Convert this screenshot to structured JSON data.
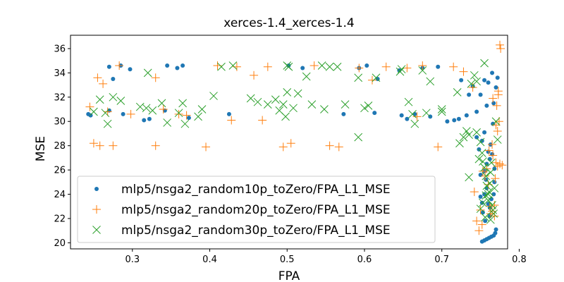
{
  "chart_data": {
    "type": "scatter",
    "title": "xerces-1.4_xerces-1.4",
    "xlabel": "FPA",
    "ylabel": "MSE",
    "xlim": [
      0.22,
      0.785
    ],
    "ylim": [
      19.5,
      37.1
    ],
    "xticks": [
      0.3,
      0.4,
      0.5,
      0.6,
      0.7,
      0.8
    ],
    "yticks": [
      20,
      22,
      24,
      26,
      28,
      30,
      32,
      34,
      36
    ],
    "grid": false,
    "legend_position": "lower-left",
    "series": [
      {
        "name": "mlp5/nsga2_random10p_toZero/FPA_L1_MSE",
        "marker": "dot",
        "color": "#1f77b4",
        "points": [
          [
            0.243,
            30.6
          ],
          [
            0.246,
            30.5
          ],
          [
            0.27,
            30.9
          ],
          [
            0.27,
            34.5
          ],
          [
            0.275,
            33.5
          ],
          [
            0.285,
            34.6
          ],
          [
            0.288,
            30.6
          ],
          [
            0.297,
            34.3
          ],
          [
            0.315,
            30.1
          ],
          [
            0.322,
            30.2
          ],
          [
            0.342,
            30.9
          ],
          [
            0.345,
            34.6
          ],
          [
            0.358,
            34.4
          ],
          [
            0.365,
            34.6
          ],
          [
            0.373,
            30.3
          ],
          [
            0.425,
            30.6
          ],
          [
            0.502,
            34.6
          ],
          [
            0.52,
            34.4
          ],
          [
            0.573,
            30.6
          ],
          [
            0.593,
            34.4
          ],
          [
            0.603,
            34.6
          ],
          [
            0.613,
            30.7
          ],
          [
            0.617,
            33.5
          ],
          [
            0.645,
            34.2
          ],
          [
            0.648,
            30.5
          ],
          [
            0.655,
            30.2
          ],
          [
            0.665,
            30.6
          ],
          [
            0.675,
            34.4
          ],
          [
            0.685,
            30.4
          ],
          [
            0.695,
            34.5
          ],
          [
            0.707,
            30.0
          ],
          [
            0.716,
            30.1
          ],
          [
            0.722,
            30.2
          ],
          [
            0.725,
            33.4
          ],
          [
            0.732,
            30.5
          ],
          [
            0.735,
            32.2
          ],
          [
            0.74,
            32.9
          ],
          [
            0.745,
            30.8
          ],
          [
            0.75,
            32.2
          ],
          [
            0.755,
            33.4
          ],
          [
            0.758,
            31.3
          ],
          [
            0.76,
            33.2
          ],
          [
            0.765,
            34.0
          ],
          [
            0.767,
            31.5
          ],
          [
            0.772,
            33.6
          ],
          [
            0.77,
            32.8
          ],
          [
            0.745,
            28.7
          ],
          [
            0.748,
            27.7
          ],
          [
            0.752,
            28.4
          ],
          [
            0.755,
            25.9
          ],
          [
            0.758,
            24.5
          ],
          [
            0.76,
            23.2
          ],
          [
            0.762,
            22.9
          ],
          [
            0.764,
            23.6
          ],
          [
            0.767,
            24.0
          ],
          [
            0.75,
            23.8
          ],
          [
            0.753,
            22.5
          ],
          [
            0.756,
            21.8
          ],
          [
            0.752,
            23.3
          ],
          [
            0.758,
            26.5
          ],
          [
            0.762,
            26.9
          ],
          [
            0.765,
            27.3
          ],
          [
            0.768,
            25.0
          ],
          [
            0.77,
            21.1
          ],
          [
            0.769,
            20.8
          ],
          [
            0.767,
            20.6
          ],
          [
            0.764,
            20.5
          ],
          [
            0.761,
            20.4
          ],
          [
            0.758,
            20.3
          ],
          [
            0.755,
            20.2
          ],
          [
            0.752,
            20.1
          ],
          [
            0.757,
            25.2
          ],
          [
            0.763,
            28.1
          ],
          [
            0.766,
            29.8
          ],
          [
            0.755,
            29.1
          ],
          [
            0.76,
            27.5
          ],
          [
            0.768,
            26.1
          ],
          [
            0.755,
            24.0
          ],
          [
            0.762,
            22.2
          ],
          [
            0.75,
            25.6
          ]
        ]
      },
      {
        "name": "mlp5/nsga2_random20p_toZero/FPA_L1_MSE",
        "marker": "plus",
        "color": "#ff7f0e",
        "points": [
          [
            0.245,
            31.2
          ],
          [
            0.25,
            28.2
          ],
          [
            0.255,
            33.6
          ],
          [
            0.258,
            28.0
          ],
          [
            0.262,
            33.1
          ],
          [
            0.268,
            30.8
          ],
          [
            0.275,
            28.0
          ],
          [
            0.283,
            34.6
          ],
          [
            0.298,
            30.6
          ],
          [
            0.33,
            33.6
          ],
          [
            0.33,
            28.0
          ],
          [
            0.34,
            31.0
          ],
          [
            0.36,
            30.6
          ],
          [
            0.37,
            30.5
          ],
          [
            0.395,
            27.9
          ],
          [
            0.41,
            34.6
          ],
          [
            0.428,
            30.1
          ],
          [
            0.435,
            34.5
          ],
          [
            0.457,
            33.8
          ],
          [
            0.468,
            30.1
          ],
          [
            0.475,
            34.5
          ],
          [
            0.495,
            27.9
          ],
          [
            0.505,
            28.2
          ],
          [
            0.535,
            34.6
          ],
          [
            0.555,
            28.0
          ],
          [
            0.567,
            27.9
          ],
          [
            0.593,
            34.4
          ],
          [
            0.61,
            33.4
          ],
          [
            0.628,
            34.5
          ],
          [
            0.655,
            34.4
          ],
          [
            0.668,
            30.4
          ],
          [
            0.675,
            34.6
          ],
          [
            0.695,
            27.9
          ],
          [
            0.715,
            34.5
          ],
          [
            0.728,
            34.1
          ],
          [
            0.74,
            32.8
          ],
          [
            0.742,
            24.2
          ],
          [
            0.745,
            21.8
          ],
          [
            0.748,
            21.0
          ],
          [
            0.75,
            22.7
          ],
          [
            0.752,
            21.5
          ],
          [
            0.753,
            25.9
          ],
          [
            0.756,
            25.5
          ],
          [
            0.758,
            26.1
          ],
          [
            0.76,
            24.8
          ],
          [
            0.762,
            23.0
          ],
          [
            0.763,
            22.4
          ],
          [
            0.765,
            22.6
          ],
          [
            0.766,
            27.2
          ],
          [
            0.768,
            23.1
          ],
          [
            0.77,
            26.6
          ],
          [
            0.772,
            26.3
          ],
          [
            0.768,
            22.2
          ],
          [
            0.771,
            31.3
          ],
          [
            0.773,
            32.2
          ],
          [
            0.775,
            36.3
          ],
          [
            0.776,
            36.0
          ],
          [
            0.774,
            30.0
          ],
          [
            0.772,
            29.2
          ],
          [
            0.77,
            29.7
          ],
          [
            0.766,
            31.9
          ],
          [
            0.773,
            32.5
          ],
          [
            0.775,
            26.5
          ],
          [
            0.778,
            26.4
          ],
          [
            0.769,
            25.3
          ],
          [
            0.765,
            28.1
          ],
          [
            0.761,
            27.6
          ]
        ]
      },
      {
        "name": "mlp5/nsga2_random30p_toZero/FPA_L1_MSE",
        "marker": "x",
        "color": "#2ca02c",
        "points": [
          [
            0.25,
            30.8
          ],
          [
            0.258,
            31.8
          ],
          [
            0.265,
            30.7
          ],
          [
            0.268,
            29.8
          ],
          [
            0.275,
            32.0
          ],
          [
            0.285,
            31.7
          ],
          [
            0.31,
            31.2
          ],
          [
            0.318,
            31.1
          ],
          [
            0.32,
            34.0
          ],
          [
            0.326,
            30.9
          ],
          [
            0.338,
            31.5
          ],
          [
            0.345,
            29.9
          ],
          [
            0.36,
            30.7
          ],
          [
            0.365,
            31.5
          ],
          [
            0.368,
            29.8
          ],
          [
            0.385,
            30.4
          ],
          [
            0.39,
            31.0
          ],
          [
            0.405,
            32.1
          ],
          [
            0.415,
            34.5
          ],
          [
            0.43,
            34.6
          ],
          [
            0.453,
            31.9
          ],
          [
            0.462,
            31.6
          ],
          [
            0.475,
            31.4
          ],
          [
            0.485,
            31.8
          ],
          [
            0.49,
            30.9
          ],
          [
            0.495,
            31.4
          ],
          [
            0.498,
            30.4
          ],
          [
            0.5,
            32.4
          ],
          [
            0.5,
            34.6
          ],
          [
            0.502,
            34.5
          ],
          [
            0.508,
            31.1
          ],
          [
            0.514,
            32.3
          ],
          [
            0.525,
            33.7
          ],
          [
            0.532,
            31.4
          ],
          [
            0.545,
            34.6
          ],
          [
            0.548,
            31.0
          ],
          [
            0.555,
            34.5
          ],
          [
            0.565,
            34.5
          ],
          [
            0.575,
            31.4
          ],
          [
            0.592,
            33.6
          ],
          [
            0.592,
            28.7
          ],
          [
            0.6,
            31.1
          ],
          [
            0.605,
            31.3
          ],
          [
            0.615,
            33.6
          ],
          [
            0.646,
            34.1
          ],
          [
            0.648,
            34.3
          ],
          [
            0.657,
            31.6
          ],
          [
            0.662,
            30.6
          ],
          [
            0.665,
            29.8
          ],
          [
            0.675,
            34.2
          ],
          [
            0.68,
            30.7
          ],
          [
            0.685,
            33.3
          ],
          [
            0.7,
            30.8
          ],
          [
            0.7,
            31.0
          ],
          [
            0.72,
            32.4
          ],
          [
            0.723,
            28.2
          ],
          [
            0.728,
            28.7
          ],
          [
            0.732,
            29.2
          ],
          [
            0.735,
            28.9
          ],
          [
            0.735,
            25.4
          ],
          [
            0.738,
            33.1
          ],
          [
            0.742,
            33.8
          ],
          [
            0.745,
            29.1
          ],
          [
            0.748,
            26.9
          ],
          [
            0.75,
            28.3
          ],
          [
            0.752,
            27.4
          ],
          [
            0.755,
            34.8
          ],
          [
            0.755,
            26.2
          ],
          [
            0.757,
            25.5
          ],
          [
            0.758,
            24.7
          ],
          [
            0.76,
            23.5
          ],
          [
            0.761,
            24.2
          ],
          [
            0.762,
            24.9
          ],
          [
            0.763,
            25.8
          ],
          [
            0.764,
            26.6
          ],
          [
            0.765,
            23.1
          ],
          [
            0.766,
            22.7
          ],
          [
            0.768,
            24.5
          ],
          [
            0.757,
            23.9
          ],
          [
            0.753,
            23.3
          ],
          [
            0.75,
            22.8
          ],
          [
            0.756,
            22.1
          ],
          [
            0.763,
            21.9
          ],
          [
            0.767,
            22.4
          ],
          [
            0.745,
            33.3
          ],
          [
            0.772,
            28.5
          ],
          [
            0.77,
            30.0
          ],
          [
            0.753,
            26.7
          ],
          [
            0.76,
            24.0
          ]
        ]
      }
    ]
  }
}
